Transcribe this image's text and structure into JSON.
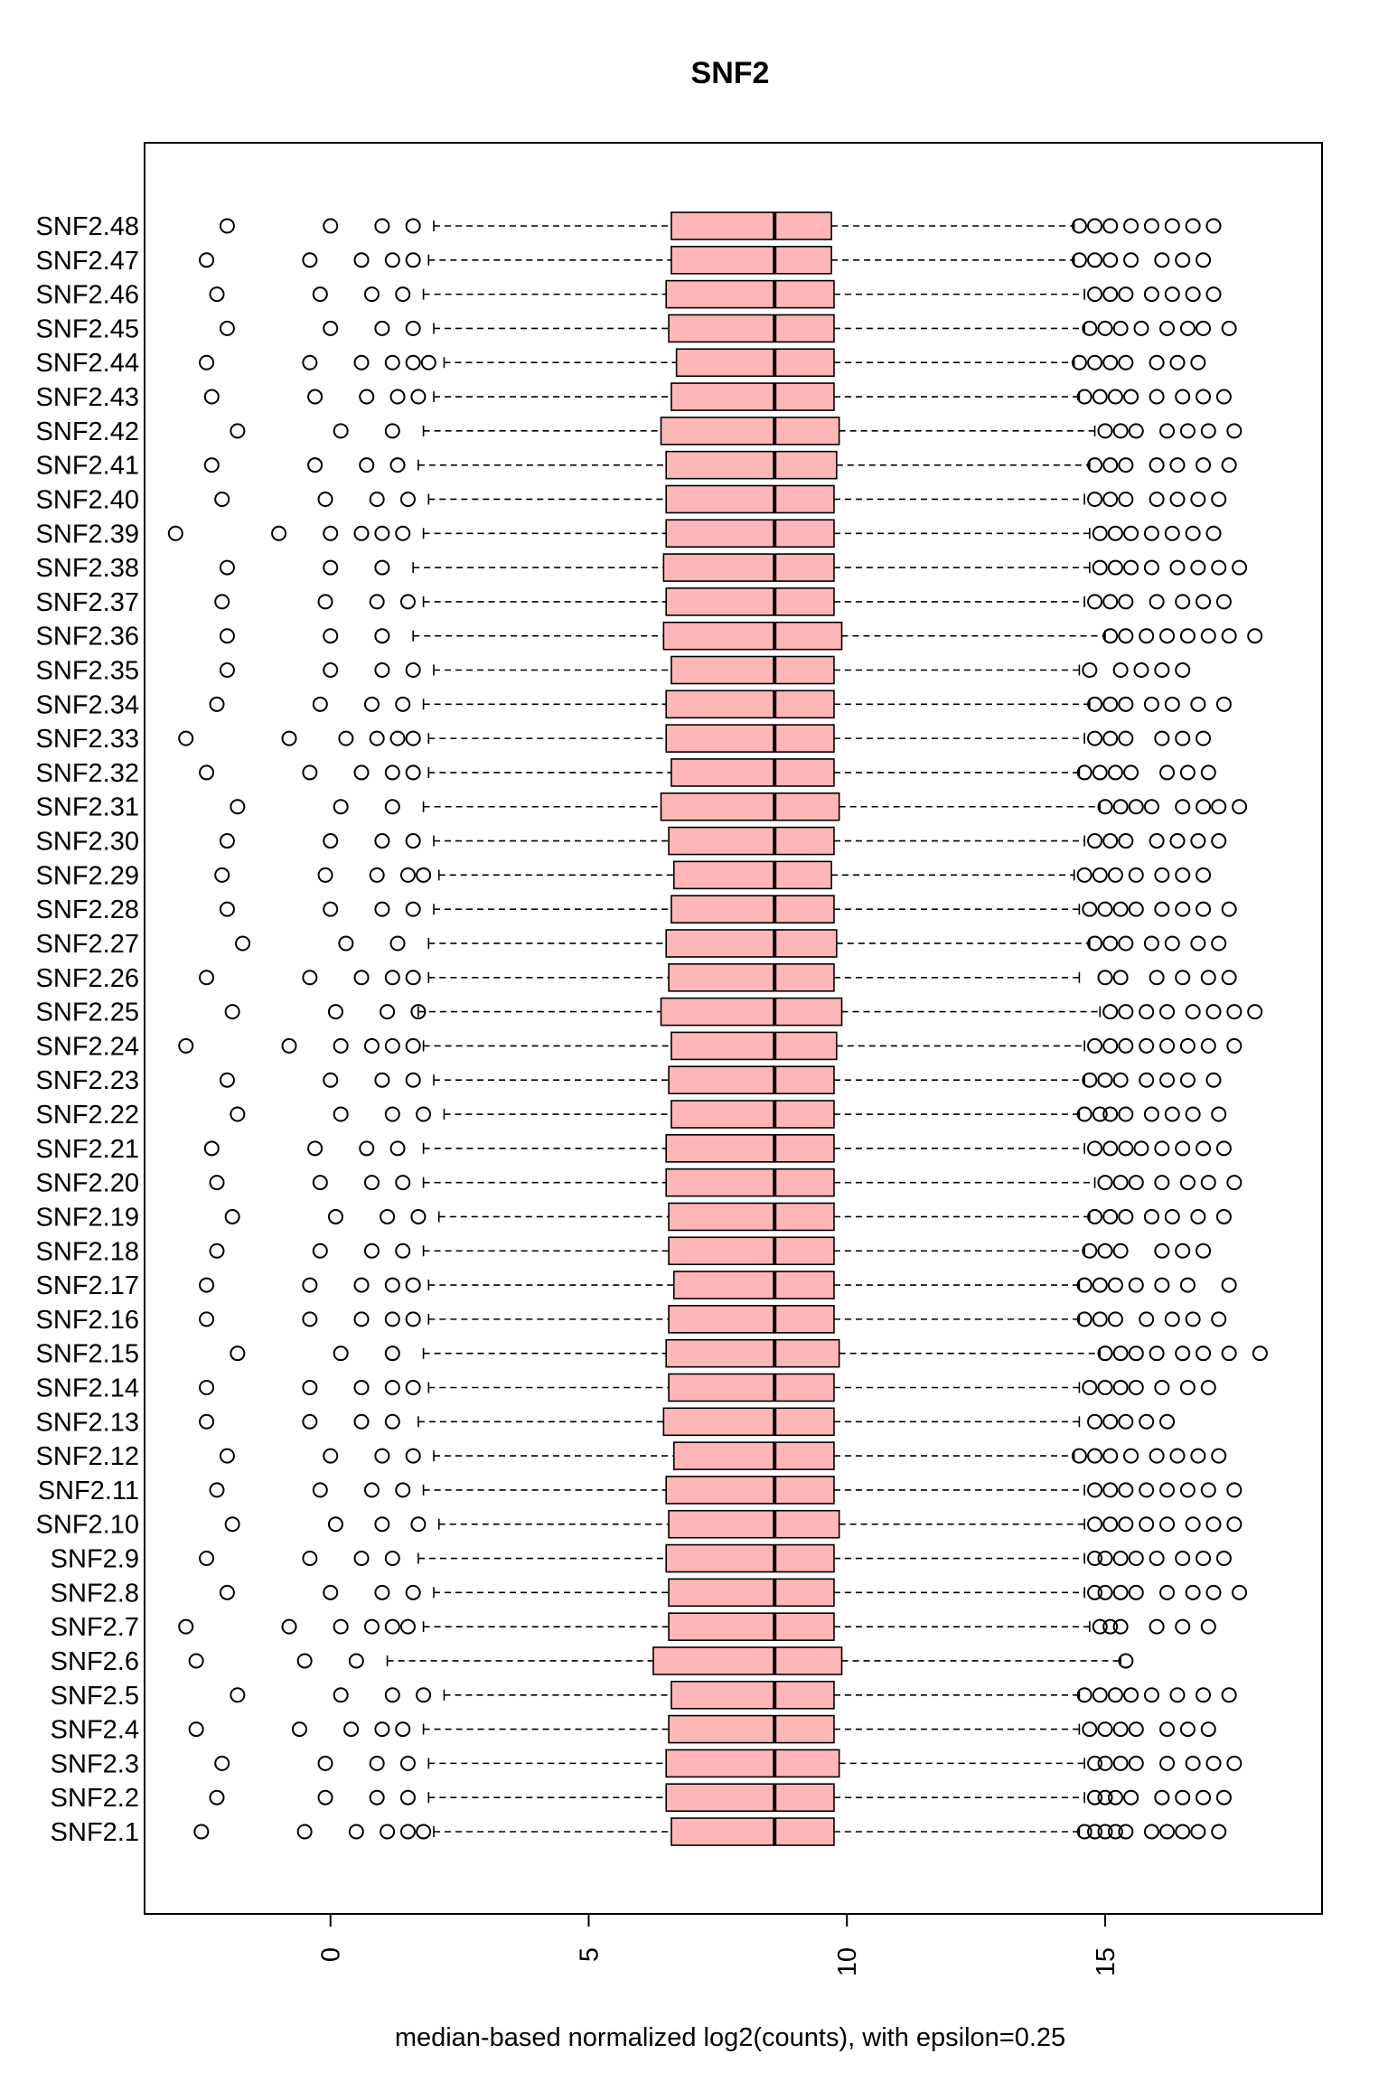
{
  "chart_data": {
    "type": "boxplot",
    "orientation": "horizontal",
    "title": "SNF2",
    "xlabel": "median-based normalized log2(counts), with epsilon=0.25",
    "ylabel": "",
    "xlim": [
      -3.6,
      19.2
    ],
    "xticks": [
      0,
      5,
      10,
      15
    ],
    "box_color": "#FFB6B6",
    "categories": [
      "SNF2.1",
      "SNF2.2",
      "SNF2.3",
      "SNF2.4",
      "SNF2.5",
      "SNF2.6",
      "SNF2.7",
      "SNF2.8",
      "SNF2.9",
      "SNF2.10",
      "SNF2.11",
      "SNF2.12",
      "SNF2.13",
      "SNF2.14",
      "SNF2.15",
      "SNF2.16",
      "SNF2.17",
      "SNF2.18",
      "SNF2.19",
      "SNF2.20",
      "SNF2.21",
      "SNF2.22",
      "SNF2.23",
      "SNF2.24",
      "SNF2.25",
      "SNF2.26",
      "SNF2.27",
      "SNF2.28",
      "SNF2.29",
      "SNF2.30",
      "SNF2.31",
      "SNF2.32",
      "SNF2.33",
      "SNF2.34",
      "SNF2.35",
      "SNF2.36",
      "SNF2.37",
      "SNF2.38",
      "SNF2.39",
      "SNF2.40",
      "SNF2.41",
      "SNF2.42",
      "SNF2.43",
      "SNF2.44",
      "SNF2.45",
      "SNF2.46",
      "SNF2.47",
      "SNF2.48"
    ],
    "boxes": [
      {
        "whisker_low": 2.0,
        "q1": 6.6,
        "median": 8.6,
        "q3": 9.75,
        "whisker_high": 14.5,
        "outliers": [
          -2.5,
          -0.5,
          0.5,
          1.1,
          1.5,
          1.8,
          14.6,
          14.8,
          15.0,
          15.2,
          15.4,
          15.9,
          16.2,
          16.5,
          16.8,
          17.2
        ]
      },
      {
        "whisker_low": 1.9,
        "q1": 6.5,
        "median": 8.6,
        "q3": 9.75,
        "whisker_high": 14.6,
        "outliers": [
          -2.2,
          -0.1,
          0.9,
          1.5,
          14.8,
          15.0,
          15.2,
          15.5,
          16.1,
          16.5,
          16.9,
          17.3
        ]
      },
      {
        "whisker_low": 1.9,
        "q1": 6.5,
        "median": 8.6,
        "q3": 9.85,
        "whisker_high": 14.6,
        "outliers": [
          -2.1,
          -0.1,
          0.9,
          1.5,
          14.8,
          15.0,
          15.3,
          15.6,
          16.2,
          16.7,
          17.1,
          17.5
        ]
      },
      {
        "whisker_low": 1.8,
        "q1": 6.55,
        "median": 8.6,
        "q3": 9.75,
        "whisker_high": 14.5,
        "outliers": [
          -2.6,
          -0.6,
          0.4,
          1.0,
          1.4,
          14.7,
          15.0,
          15.3,
          15.6,
          16.2,
          16.6,
          17.0
        ]
      },
      {
        "whisker_low": 2.2,
        "q1": 6.6,
        "median": 8.6,
        "q3": 9.75,
        "whisker_high": 14.5,
        "outliers": [
          -1.8,
          0.2,
          1.2,
          1.8,
          14.6,
          14.9,
          15.2,
          15.5,
          15.9,
          16.4,
          16.9,
          17.4
        ]
      },
      {
        "whisker_low": 1.1,
        "q1": 6.25,
        "median": 8.6,
        "q3": 9.9,
        "whisker_high": 15.3,
        "outliers": [
          -2.6,
          -0.5,
          0.5,
          15.4
        ]
      },
      {
        "whisker_low": 1.8,
        "q1": 6.55,
        "median": 8.6,
        "q3": 9.75,
        "whisker_high": 14.7,
        "outliers": [
          -2.8,
          -0.8,
          0.2,
          0.8,
          1.2,
          1.5,
          14.9,
          15.1,
          15.3,
          16.0,
          16.5,
          17.0
        ]
      },
      {
        "whisker_low": 2.0,
        "q1": 6.55,
        "median": 8.6,
        "q3": 9.75,
        "whisker_high": 14.6,
        "outliers": [
          -2.0,
          0.0,
          1.0,
          1.6,
          14.8,
          15.0,
          15.3,
          15.6,
          16.2,
          16.7,
          17.1,
          17.6
        ]
      },
      {
        "whisker_low": 1.7,
        "q1": 6.5,
        "median": 8.6,
        "q3": 9.75,
        "whisker_high": 14.6,
        "outliers": [
          -2.4,
          -0.4,
          0.6,
          1.2,
          14.8,
          15.0,
          15.3,
          15.6,
          16.0,
          16.5,
          16.9,
          17.3
        ]
      },
      {
        "whisker_low": 2.1,
        "q1": 6.55,
        "median": 8.6,
        "q3": 9.85,
        "whisker_high": 14.6,
        "outliers": [
          -1.9,
          0.1,
          1.0,
          1.7,
          14.8,
          15.1,
          15.4,
          15.8,
          16.2,
          16.7,
          17.1,
          17.5
        ]
      },
      {
        "whisker_low": 1.8,
        "q1": 6.5,
        "median": 8.6,
        "q3": 9.75,
        "whisker_high": 14.6,
        "outliers": [
          -2.2,
          -0.2,
          0.8,
          1.4,
          14.8,
          15.1,
          15.4,
          15.8,
          16.2,
          16.6,
          17.0,
          17.5
        ]
      },
      {
        "whisker_low": 2.0,
        "q1": 6.65,
        "median": 8.6,
        "q3": 9.75,
        "whisker_high": 14.4,
        "outliers": [
          -2.0,
          0.0,
          1.0,
          1.6,
          14.5,
          14.8,
          15.1,
          15.5,
          16.0,
          16.4,
          16.8,
          17.2
        ]
      },
      {
        "whisker_low": 1.7,
        "q1": 6.45,
        "median": 8.6,
        "q3": 9.75,
        "whisker_high": 14.5,
        "outliers": [
          -2.4,
          -0.4,
          0.6,
          1.2,
          14.8,
          15.1,
          15.4,
          15.8,
          16.2
        ]
      },
      {
        "whisker_low": 1.9,
        "q1": 6.55,
        "median": 8.6,
        "q3": 9.75,
        "whisker_high": 14.5,
        "outliers": [
          -2.4,
          -0.4,
          0.6,
          1.2,
          1.6,
          14.7,
          15.0,
          15.3,
          15.6,
          16.1,
          16.6,
          17.0
        ]
      },
      {
        "whisker_low": 1.8,
        "q1": 6.5,
        "median": 8.6,
        "q3": 9.85,
        "whisker_high": 14.9,
        "outliers": [
          -1.8,
          0.2,
          1.2,
          15.0,
          15.3,
          15.6,
          16.0,
          16.5,
          16.9,
          17.4,
          18.0
        ]
      },
      {
        "whisker_low": 1.9,
        "q1": 6.55,
        "median": 8.6,
        "q3": 9.75,
        "whisker_high": 14.5,
        "outliers": [
          -2.4,
          -0.4,
          0.6,
          1.2,
          1.6,
          14.6,
          14.9,
          15.2,
          15.8,
          16.3,
          16.7,
          17.2
        ]
      },
      {
        "whisker_low": 1.9,
        "q1": 6.65,
        "median": 8.6,
        "q3": 9.75,
        "whisker_high": 14.5,
        "outliers": [
          -2.4,
          -0.4,
          0.6,
          1.2,
          1.6,
          14.6,
          14.9,
          15.2,
          15.6,
          16.1,
          16.6,
          17.4
        ]
      },
      {
        "whisker_low": 1.8,
        "q1": 6.55,
        "median": 8.6,
        "q3": 9.75,
        "whisker_high": 14.6,
        "outliers": [
          -2.2,
          -0.2,
          0.8,
          1.4,
          14.7,
          15.0,
          15.3,
          16.1,
          16.5,
          16.9
        ]
      },
      {
        "whisker_low": 2.1,
        "q1": 6.55,
        "median": 8.6,
        "q3": 9.75,
        "whisker_high": 14.7,
        "outliers": [
          -1.9,
          0.1,
          1.1,
          1.7,
          14.8,
          15.1,
          15.4,
          15.9,
          16.3,
          16.8,
          17.3
        ]
      },
      {
        "whisker_low": 1.8,
        "q1": 6.5,
        "median": 8.6,
        "q3": 9.75,
        "whisker_high": 14.8,
        "outliers": [
          -2.2,
          -0.2,
          0.8,
          1.4,
          15.0,
          15.3,
          15.6,
          16.1,
          16.6,
          17.0,
          17.5
        ]
      },
      {
        "whisker_low": 1.8,
        "q1": 6.5,
        "median": 8.6,
        "q3": 9.75,
        "whisker_high": 14.6,
        "outliers": [
          -2.3,
          -0.3,
          0.7,
          1.3,
          14.8,
          15.1,
          15.4,
          15.7,
          16.1,
          16.5,
          16.9,
          17.3
        ]
      },
      {
        "whisker_low": 2.2,
        "q1": 6.6,
        "median": 8.6,
        "q3": 9.75,
        "whisker_high": 14.5,
        "outliers": [
          -1.8,
          0.2,
          1.2,
          1.8,
          14.6,
          14.9,
          15.1,
          15.4,
          15.9,
          16.3,
          16.7,
          17.2
        ]
      },
      {
        "whisker_low": 2.0,
        "q1": 6.55,
        "median": 8.6,
        "q3": 9.75,
        "whisker_high": 14.6,
        "outliers": [
          -2.0,
          0.0,
          1.0,
          1.6,
          14.7,
          15.0,
          15.3,
          15.8,
          16.2,
          16.6,
          17.1
        ]
      },
      {
        "whisker_low": 1.8,
        "q1": 6.6,
        "median": 8.6,
        "q3": 9.8,
        "whisker_high": 14.6,
        "outliers": [
          -2.8,
          -0.8,
          0.2,
          0.8,
          1.2,
          1.6,
          14.8,
          15.1,
          15.4,
          15.8,
          16.2,
          16.6,
          17.0,
          17.5
        ]
      },
      {
        "whisker_low": 1.7,
        "q1": 6.4,
        "median": 8.6,
        "q3": 9.9,
        "whisker_high": 14.9,
        "outliers": [
          -1.9,
          0.1,
          1.1,
          1.7,
          15.1,
          15.4,
          15.8,
          16.2,
          16.7,
          17.1,
          17.5,
          17.9
        ]
      },
      {
        "whisker_low": 1.9,
        "q1": 6.55,
        "median": 8.6,
        "q3": 9.75,
        "whisker_high": 14.5,
        "outliers": [
          -2.4,
          -0.4,
          0.6,
          1.2,
          1.6,
          15.0,
          15.3,
          16.0,
          16.5,
          17.0,
          17.4
        ]
      },
      {
        "whisker_low": 1.9,
        "q1": 6.5,
        "median": 8.6,
        "q3": 9.8,
        "whisker_high": 14.7,
        "outliers": [
          -1.7,
          0.3,
          1.3,
          14.8,
          15.1,
          15.4,
          15.9,
          16.3,
          16.8,
          17.2
        ]
      },
      {
        "whisker_low": 2.0,
        "q1": 6.6,
        "median": 8.6,
        "q3": 9.75,
        "whisker_high": 14.5,
        "outliers": [
          -2.0,
          0.0,
          1.0,
          1.6,
          14.7,
          15.0,
          15.3,
          15.6,
          16.1,
          16.5,
          16.9,
          17.4
        ]
      },
      {
        "whisker_low": 2.1,
        "q1": 6.65,
        "median": 8.6,
        "q3": 9.7,
        "whisker_high": 14.4,
        "outliers": [
          -2.1,
          -0.1,
          0.9,
          1.5,
          1.8,
          14.6,
          14.9,
          15.2,
          15.6,
          16.1,
          16.5,
          16.9
        ]
      },
      {
        "whisker_low": 2.0,
        "q1": 6.55,
        "median": 8.6,
        "q3": 9.75,
        "whisker_high": 14.6,
        "outliers": [
          -2.0,
          0.0,
          1.0,
          1.6,
          14.8,
          15.1,
          15.4,
          16.0,
          16.4,
          16.8,
          17.2
        ]
      },
      {
        "whisker_low": 1.8,
        "q1": 6.4,
        "median": 8.6,
        "q3": 9.85,
        "whisker_high": 14.9,
        "outliers": [
          -1.8,
          0.2,
          1.2,
          15.0,
          15.3,
          15.6,
          15.9,
          16.5,
          16.9,
          17.2,
          17.6
        ]
      },
      {
        "whisker_low": 1.9,
        "q1": 6.6,
        "median": 8.6,
        "q3": 9.75,
        "whisker_high": 14.5,
        "outliers": [
          -2.4,
          -0.4,
          0.6,
          1.2,
          1.6,
          14.6,
          14.9,
          15.2,
          15.5,
          16.2,
          16.6,
          17.0
        ]
      },
      {
        "whisker_low": 1.9,
        "q1": 6.5,
        "median": 8.6,
        "q3": 9.75,
        "whisker_high": 14.6,
        "outliers": [
          -2.8,
          -0.8,
          0.3,
          0.9,
          1.3,
          1.6,
          14.8,
          15.1,
          15.4,
          16.1,
          16.5,
          16.9
        ]
      },
      {
        "whisker_low": 1.8,
        "q1": 6.5,
        "median": 8.6,
        "q3": 9.75,
        "whisker_high": 14.7,
        "outliers": [
          -2.2,
          -0.2,
          0.8,
          1.4,
          14.8,
          15.1,
          15.4,
          15.9,
          16.3,
          16.8,
          17.3
        ]
      },
      {
        "whisker_low": 2.0,
        "q1": 6.6,
        "median": 8.6,
        "q3": 9.75,
        "whisker_high": 14.5,
        "outliers": [
          -2.0,
          0.0,
          1.0,
          1.6,
          14.7,
          15.3,
          15.7,
          16.1,
          16.5
        ]
      },
      {
        "whisker_low": 1.6,
        "q1": 6.45,
        "median": 8.6,
        "q3": 9.9,
        "whisker_high": 15.0,
        "outliers": [
          -2.0,
          0.0,
          1.0,
          15.1,
          15.4,
          15.8,
          16.2,
          16.6,
          17.0,
          17.4,
          17.9
        ]
      },
      {
        "whisker_low": 1.8,
        "q1": 6.5,
        "median": 8.6,
        "q3": 9.75,
        "whisker_high": 14.6,
        "outliers": [
          -2.1,
          -0.1,
          0.9,
          1.5,
          14.8,
          15.1,
          15.4,
          16.0,
          16.5,
          16.9,
          17.3
        ]
      },
      {
        "whisker_low": 1.6,
        "q1": 6.45,
        "median": 8.6,
        "q3": 9.75,
        "whisker_high": 14.7,
        "outliers": [
          -2.0,
          0.0,
          1.0,
          14.9,
          15.2,
          15.5,
          15.9,
          16.4,
          16.8,
          17.2,
          17.6
        ]
      },
      {
        "whisker_low": 1.8,
        "q1": 6.5,
        "median": 8.6,
        "q3": 9.75,
        "whisker_high": 14.7,
        "outliers": [
          -3.0,
          -1.0,
          0.0,
          0.6,
          1.0,
          1.4,
          14.9,
          15.2,
          15.5,
          15.9,
          16.3,
          16.7,
          17.1
        ]
      },
      {
        "whisker_low": 1.9,
        "q1": 6.5,
        "median": 8.6,
        "q3": 9.75,
        "whisker_high": 14.6,
        "outliers": [
          -2.1,
          -0.1,
          0.9,
          1.5,
          14.8,
          15.1,
          15.4,
          16.0,
          16.4,
          16.8,
          17.2
        ]
      },
      {
        "whisker_low": 1.7,
        "q1": 6.5,
        "median": 8.6,
        "q3": 9.8,
        "whisker_high": 14.7,
        "outliers": [
          -2.3,
          -0.3,
          0.7,
          1.3,
          14.8,
          15.1,
          15.4,
          16.0,
          16.4,
          16.9,
          17.4
        ]
      },
      {
        "whisker_low": 1.8,
        "q1": 6.4,
        "median": 8.6,
        "q3": 9.85,
        "whisker_high": 14.8,
        "outliers": [
          -1.8,
          0.2,
          1.2,
          15.0,
          15.3,
          15.6,
          16.2,
          16.6,
          17.0,
          17.5
        ]
      },
      {
        "whisker_low": 2.0,
        "q1": 6.6,
        "median": 8.6,
        "q3": 9.75,
        "whisker_high": 14.5,
        "outliers": [
          -2.3,
          -0.3,
          0.7,
          1.3,
          1.7,
          14.6,
          14.9,
          15.2,
          15.5,
          16.0,
          16.5,
          16.9,
          17.3
        ]
      },
      {
        "whisker_low": 2.2,
        "q1": 6.7,
        "median": 8.6,
        "q3": 9.75,
        "whisker_high": 14.4,
        "outliers": [
          -2.4,
          -0.4,
          0.6,
          1.2,
          1.6,
          1.9,
          14.5,
          14.8,
          15.1,
          15.4,
          16.0,
          16.4,
          16.8
        ]
      },
      {
        "whisker_low": 2.0,
        "q1": 6.55,
        "median": 8.6,
        "q3": 9.75,
        "whisker_high": 14.6,
        "outliers": [
          -2.0,
          0.0,
          1.0,
          1.6,
          14.7,
          15.0,
          15.3,
          15.7,
          16.2,
          16.6,
          16.9,
          17.4
        ]
      },
      {
        "whisker_low": 1.8,
        "q1": 6.5,
        "median": 8.6,
        "q3": 9.75,
        "whisker_high": 14.6,
        "outliers": [
          -2.2,
          -0.2,
          0.8,
          1.4,
          14.8,
          15.1,
          15.4,
          15.9,
          16.3,
          16.7,
          17.1
        ]
      },
      {
        "whisker_low": 1.9,
        "q1": 6.6,
        "median": 8.6,
        "q3": 9.7,
        "whisker_high": 14.4,
        "outliers": [
          -2.4,
          -0.4,
          0.6,
          1.2,
          1.6,
          14.5,
          14.8,
          15.1,
          15.5,
          16.1,
          16.5,
          16.9
        ]
      },
      {
        "whisker_low": 2.0,
        "q1": 6.6,
        "median": 8.6,
        "q3": 9.7,
        "whisker_high": 14.4,
        "outliers": [
          -2.0,
          0.0,
          1.0,
          1.6,
          14.5,
          14.8,
          15.1,
          15.5,
          15.9,
          16.3,
          16.7,
          17.1
        ]
      }
    ]
  }
}
